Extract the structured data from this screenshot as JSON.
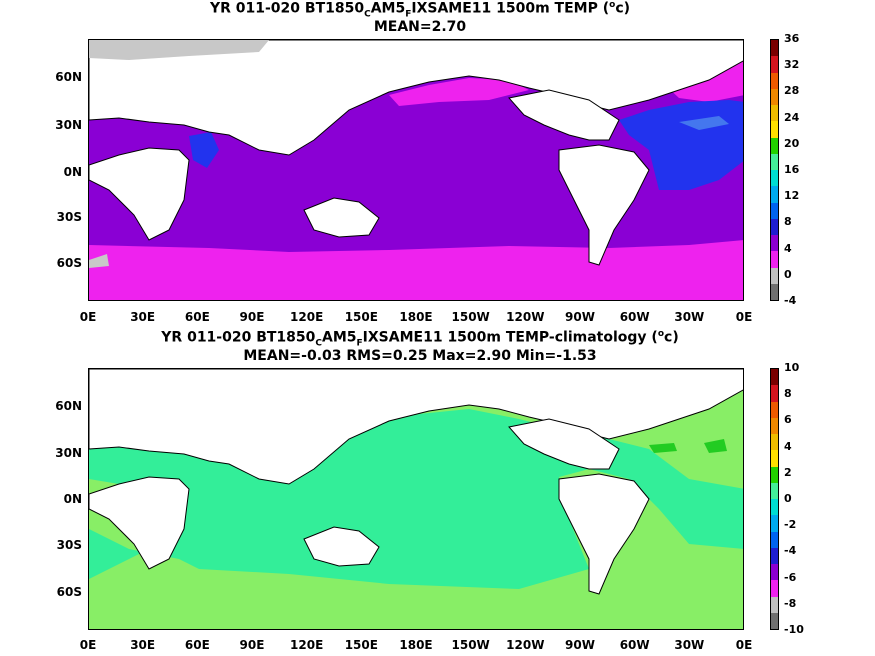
{
  "panels": [
    {
      "title_parts": [
        "YR 011-020 BT1850",
        "C",
        "AM5",
        "F",
        "IXSAME11 1500m TEMP (",
        "o",
        "c)"
      ],
      "subtitle": "MEAN=2.70",
      "colorbar_labels": [
        "36",
        "32",
        "28",
        "24",
        "20",
        "16",
        "12",
        "8",
        "4",
        "0",
        "-4"
      ],
      "colors": {
        "ocean_fill": "#8a00d4",
        "polar_fill": "#ee22ee",
        "atlantic_fill": "#2233ee",
        "atlantic_light": "#4477ee",
        "land": "#ffffff",
        "ice": "#c8c8c8"
      }
    },
    {
      "title_parts": [
        "YR 011-020 BT1850",
        "C",
        "AM5",
        "F",
        "IXSAME11 1500m TEMP-climatology (",
        "o",
        "c)"
      ],
      "subtitle": "MEAN=-0.03   RMS=0.25   Max=2.90   Min=-1.53",
      "colorbar_labels": [
        "10",
        "8",
        "6",
        "4",
        "2",
        "0",
        "-2",
        "-4",
        "-6",
        "-8",
        "-10"
      ],
      "colors": {
        "ocean_fill": "#33ee99",
        "highlat_fill": "#88ee66",
        "patch_fill": "#22cc22",
        "land": "#ffffff"
      }
    }
  ],
  "axes": {
    "lat_labels": [
      "60N",
      "30N",
      "0N",
      "30S",
      "60S"
    ],
    "lon_labels": [
      "0E",
      "30E",
      "60E",
      "90E",
      "120E",
      "150E",
      "180E",
      "150W",
      "120W",
      "90W",
      "60W",
      "30W",
      "0E"
    ]
  },
  "colorbar_colors": [
    "#7a0000",
    "#d4141e",
    "#ee5a00",
    "#ee8800",
    "#eebc00",
    "#ffe000",
    "#22d200",
    "#44ee99",
    "#00dcd2",
    "#00aaee",
    "#0064f0",
    "#1e1ed2",
    "#8c00d2",
    "#ee22ee",
    "#c0c0c0",
    "#707070"
  ]
}
